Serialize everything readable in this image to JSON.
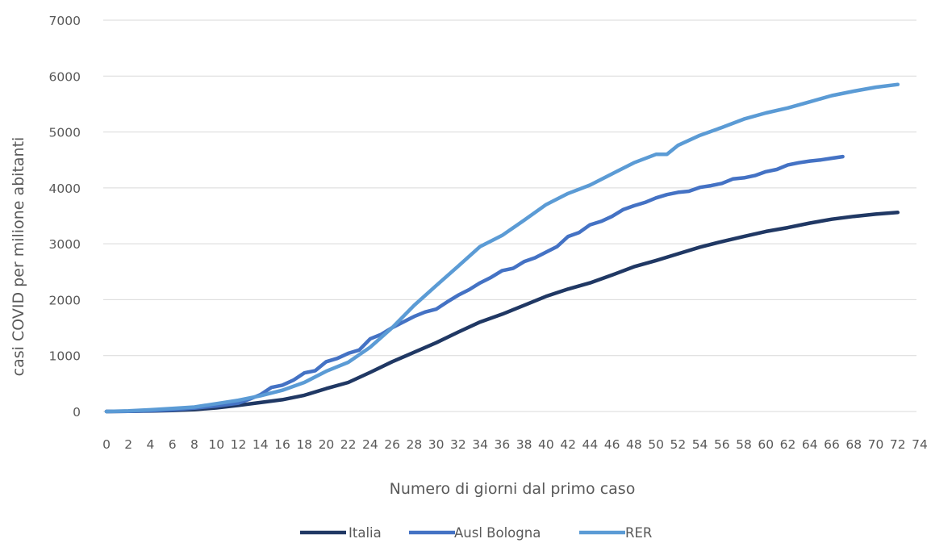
{
  "chart_data": {
    "type": "line",
    "title": "",
    "xlabel": "Numero di giorni dal primo caso",
    "ylabel": "casi COVID per milione abitanti",
    "xlim": [
      0,
      74
    ],
    "ylim": [
      0,
      7000
    ],
    "x_ticks": [
      0,
      2,
      4,
      6,
      8,
      10,
      12,
      14,
      16,
      18,
      20,
      22,
      24,
      26,
      28,
      30,
      32,
      34,
      36,
      38,
      40,
      42,
      44,
      46,
      48,
      50,
      52,
      54,
      56,
      58,
      60,
      62,
      64,
      66,
      68,
      70,
      72,
      74
    ],
    "y_ticks": [
      0,
      1000,
      2000,
      3000,
      4000,
      5000,
      6000,
      7000
    ],
    "grid": true,
    "legend_position": "bottom",
    "series": [
      {
        "name": "Italia",
        "color": "#203864",
        "x": [
          0,
          2,
          4,
          6,
          8,
          10,
          12,
          14,
          16,
          18,
          20,
          22,
          24,
          26,
          28,
          30,
          32,
          34,
          36,
          38,
          40,
          42,
          44,
          46,
          48,
          50,
          52,
          54,
          56,
          58,
          60,
          62,
          64,
          66,
          68,
          70,
          72
        ],
        "values": [
          0,
          3,
          8,
          18,
          35,
          65,
          110,
          160,
          210,
          290,
          410,
          520,
          700,
          890,
          1060,
          1230,
          1420,
          1600,
          1740,
          1900,
          2060,
          2190,
          2300,
          2440,
          2590,
          2700,
          2820,
          2940,
          3040,
          3130,
          3220,
          3290,
          3370,
          3440,
          3490,
          3530,
          3560
        ]
      },
      {
        "name": "Ausl Bologna",
        "color": "#4472C4",
        "x": [
          0,
          2,
          4,
          6,
          8,
          10,
          12,
          13,
          14,
          15,
          16,
          17,
          18,
          19,
          20,
          21,
          22,
          23,
          24,
          25,
          26,
          27,
          28,
          29,
          30,
          31,
          32,
          33,
          34,
          35,
          36,
          37,
          38,
          39,
          40,
          41,
          42,
          43,
          44,
          45,
          46,
          47,
          48,
          49,
          50,
          51,
          52,
          53,
          54,
          55,
          56,
          57,
          58,
          59,
          60,
          61,
          62,
          63,
          64,
          65,
          66,
          67
        ],
        "values": [
          0,
          5,
          15,
          30,
          60,
          100,
          150,
          220,
          300,
          430,
          470,
          560,
          690,
          730,
          890,
          950,
          1040,
          1100,
          1300,
          1380,
          1500,
          1600,
          1700,
          1780,
          1830,
          1960,
          2080,
          2180,
          2300,
          2400,
          2520,
          2560,
          2680,
          2750,
          2850,
          2950,
          3130,
          3200,
          3340,
          3400,
          3490,
          3610,
          3680,
          3740,
          3820,
          3880,
          3920,
          3940,
          4010,
          4040,
          4080,
          4160,
          4180,
          4220,
          4290,
          4330,
          4410,
          4450,
          4480,
          4500,
          4530,
          4560
        ]
      },
      {
        "name": "RER",
        "color": "#5B9BD5",
        "x": [
          0,
          2,
          4,
          6,
          8,
          10,
          12,
          14,
          16,
          18,
          20,
          22,
          24,
          26,
          28,
          30,
          32,
          34,
          36,
          38,
          40,
          42,
          44,
          46,
          48,
          50,
          51,
          52,
          54,
          56,
          58,
          60,
          62,
          64,
          66,
          68,
          70,
          72
        ],
        "values": [
          0,
          10,
          30,
          55,
          80,
          140,
          200,
          280,
          380,
          520,
          720,
          880,
          1150,
          1500,
          1900,
          2250,
          2600,
          2950,
          3150,
          3420,
          3700,
          3900,
          4050,
          4250,
          4450,
          4600,
          4600,
          4760,
          4940,
          5080,
          5230,
          5340,
          5430,
          5540,
          5650,
          5730,
          5800,
          5850
        ]
      }
    ]
  }
}
